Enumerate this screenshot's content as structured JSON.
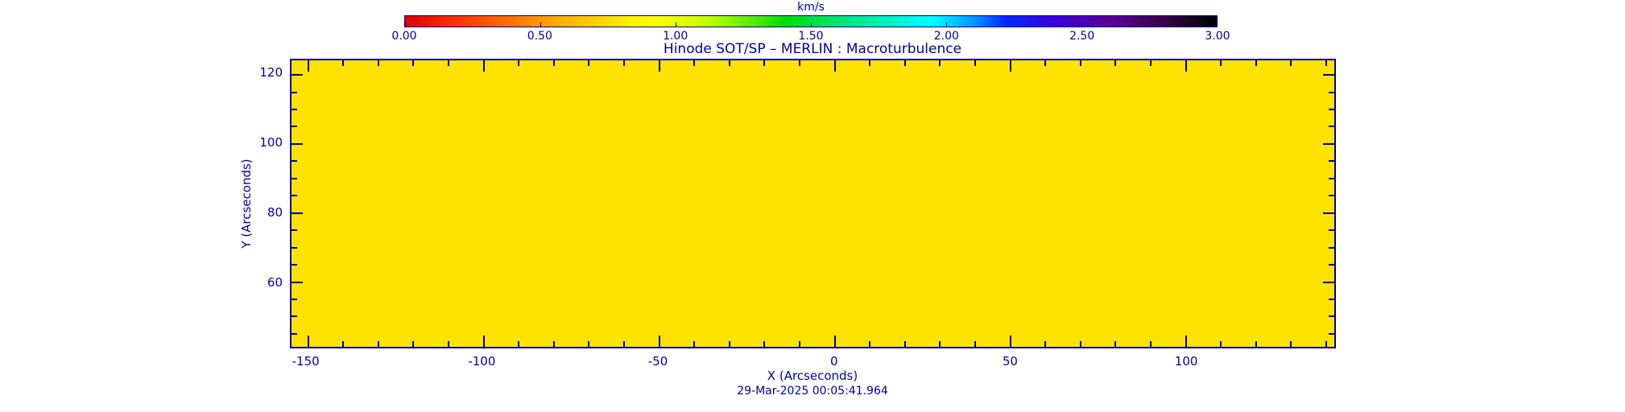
{
  "chart_data": {
    "type": "heatmap",
    "title": "Hinode SOT/SP – MERLIN : Macroturbulence",
    "xlabel": "X (Arcseconds)",
    "ylabel": "Y (Arcseconds)",
    "timestamp": "29-Mar-2025 00:05:41.964",
    "xlim": [
      -154.5,
      142.5
    ],
    "ylim": [
      41,
      124
    ],
    "x_ticks": [
      -150,
      -100,
      -50,
      0,
      50,
      100
    ],
    "y_ticks": [
      60,
      80,
      100,
      120
    ],
    "x_minor_step": 10,
    "y_minor_step": 5,
    "grid": false,
    "values": "uniform",
    "uniform_value_estimate_km_s": 0.95,
    "map_fill_color": "#ffe300",
    "axis_color": "#0000a0",
    "colorbar": {
      "label": "km/s",
      "min": 0.0,
      "max": 3.0,
      "position": "top",
      "tick_values": [
        0.0,
        0.5,
        1.0,
        1.5,
        2.0,
        2.5,
        3.0
      ],
      "tick_labels": [
        "0.00",
        "0.50",
        "1.00",
        "1.50",
        "2.00",
        "2.50",
        "3.00"
      ],
      "gradient_stops": [
        {
          "pos": 0.0,
          "color": "#dc0000"
        },
        {
          "pos": 0.07,
          "color": "#ff3800"
        },
        {
          "pos": 0.13,
          "color": "#ff7000"
        },
        {
          "pos": 0.17,
          "color": "#ff9c00"
        },
        {
          "pos": 0.23,
          "color": "#ffcc00"
        },
        {
          "pos": 0.28,
          "color": "#fff200"
        },
        {
          "pos": 0.31,
          "color": "#ffff00"
        },
        {
          "pos": 0.37,
          "color": "#c8ff00"
        },
        {
          "pos": 0.42,
          "color": "#64f000"
        },
        {
          "pos": 0.47,
          "color": "#00dc00"
        },
        {
          "pos": 0.53,
          "color": "#00e46c"
        },
        {
          "pos": 0.6,
          "color": "#00f4c8"
        },
        {
          "pos": 0.65,
          "color": "#00ffff"
        },
        {
          "pos": 0.7,
          "color": "#0098ff"
        },
        {
          "pos": 0.74,
          "color": "#0028ff"
        },
        {
          "pos": 0.8,
          "color": "#3c00d8"
        },
        {
          "pos": 0.87,
          "color": "#5c0090"
        },
        {
          "pos": 0.93,
          "color": "#3c0050"
        },
        {
          "pos": 1.0,
          "color": "#000000"
        }
      ]
    }
  }
}
